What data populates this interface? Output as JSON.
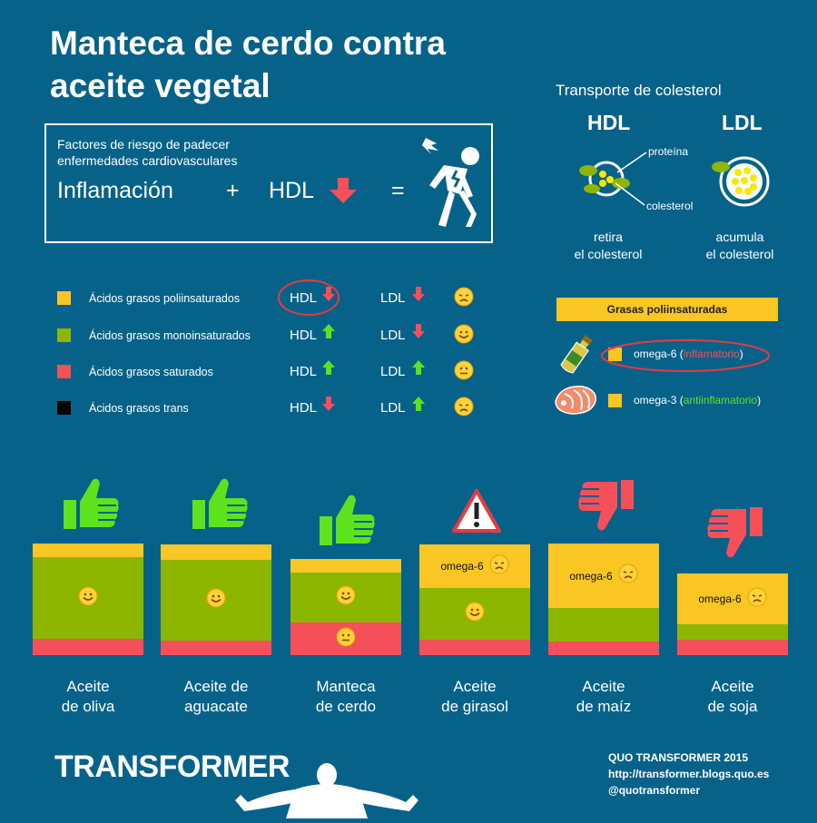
{
  "title_line1": "Manteca de cerdo contra",
  "title_line2": "aceite vegetal",
  "risk": {
    "heading_line1": "Factores de riesgo de padecer",
    "heading_line2": "enfermedades cardiovasculares",
    "term1": "Inflamación",
    "plus": "+",
    "term2": "HDL",
    "equals": "="
  },
  "transport": {
    "title": "Transporte de colesterol",
    "hdl": "HDL",
    "ldl": "LDL",
    "protein": "proteína",
    "cholesterol": "colesterol",
    "hdl_desc1": "retira",
    "hdl_desc2": "el colesterol",
    "ldl_desc1": "acumula",
    "ldl_desc2": "el colesterol"
  },
  "legend": [
    {
      "label": "Ácidos grasos poliinsaturados",
      "color": "#f9c623",
      "hdl": "HDL",
      "hdl_dir": "down",
      "ldl": "LDL",
      "ldl_dir": "down",
      "face": "sad"
    },
    {
      "label": "Ácidos grasos monoinsaturados",
      "color": "#8db600",
      "hdl": "HDL",
      "hdl_dir": "up",
      "ldl": "LDL",
      "ldl_dir": "down",
      "face": "happy"
    },
    {
      "label": "Ácidos grasos saturados",
      "color": "#f5505a",
      "hdl": "HDL",
      "hdl_dir": "up",
      "ldl": "LDL",
      "ldl_dir": "up",
      "face": "neutral"
    },
    {
      "label": "Ácidos grasos trans",
      "color": "#000000",
      "hdl": "HDL",
      "hdl_dir": "down",
      "ldl": "LDL",
      "ldl_dir": "up",
      "face": "sad"
    }
  ],
  "poly": {
    "header": "Grasas poliinsaturadas",
    "o6": "omega-6",
    "o6_paren_open": "(",
    "o6_note": "inflamatorio",
    "o6_paren_close": ")",
    "o3": "omega-3",
    "o3_paren_open": "(",
    "o3_note": "antiinflamatorio",
    "o3_paren_close": ")"
  },
  "oils": [
    {
      "line1": "Aceite",
      "line2": "de oliva",
      "icon": "thumbs-up-icon"
    },
    {
      "line1": "Aceite de",
      "line2": "aguacate",
      "icon": "thumbs-up-icon"
    },
    {
      "line1": "Manteca",
      "line2": "de cerdo",
      "icon": "thumbs-up-icon"
    },
    {
      "line1": "Aceite",
      "line2": "de girasol",
      "icon": "warning-icon"
    },
    {
      "line1": "Aceite",
      "line2": "de maíz",
      "icon": "thumbs-down-icon"
    },
    {
      "line1": "Aceite",
      "line2": "de soja",
      "icon": "thumbs-down-icon"
    }
  ],
  "omega6_label": "omega-6",
  "colors": {
    "poly": "#f9c623",
    "mono": "#8db600",
    "sat": "#f5505a",
    "up_arrow": "#5de31d",
    "down_arrow": "#f5505a",
    "bg": "#07628a"
  },
  "footer": {
    "brand": "TRANSFORMER",
    "credit": "QUO TRANSFORMER 2015",
    "url": "http://transformer.blogs.quo.es",
    "handle": "@quotransformer"
  }
}
